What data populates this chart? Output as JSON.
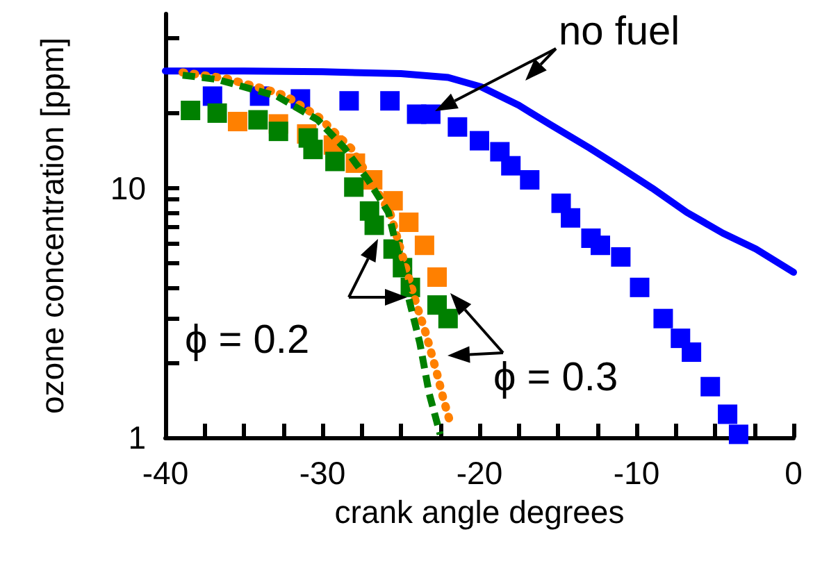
{
  "chart_data": {
    "type": "scatter",
    "xlabel": "crank angle degrees",
    "ylabel": "ozone concentration [ppm]",
    "log": "y",
    "grid": false,
    "xlim": [
      -40,
      0
    ],
    "ylim": [
      1,
      50
    ],
    "xticks": [
      -40,
      {
        "value": -37.5,
        "label": null
      },
      {
        "value": -35,
        "label": null
      },
      {
        "value": -32.5,
        "label": null
      },
      -30,
      {
        "value": -27.5,
        "label": null
      },
      {
        "value": -25,
        "label": null
      },
      {
        "value": -22.5,
        "label": null
      },
      -20,
      {
        "value": -17.5,
        "label": null
      },
      {
        "value": -15,
        "label": null
      },
      {
        "value": -12.5,
        "label": null
      },
      -10,
      {
        "value": -7.5,
        "label": null
      },
      {
        "value": -5,
        "label": null
      },
      {
        "value": -2.5,
        "label": null
      },
      0
    ],
    "yticks": [
      1,
      {
        "value": 2,
        "label": null
      },
      {
        "value": 3,
        "label": null
      },
      {
        "value": 4,
        "label": null
      },
      {
        "value": 5,
        "label": null
      },
      {
        "value": 6,
        "label": null
      },
      {
        "value": 7,
        "label": null
      },
      {
        "value": 8,
        "label": null
      },
      {
        "value": 9,
        "label": null
      },
      10,
      {
        "value": 20,
        "label": null
      },
      {
        "value": 30,
        "label": null
      },
      {
        "value": 40,
        "label": null
      }
    ],
    "series": [
      {
        "type": "line",
        "line_style": "solid",
        "marker": "none",
        "color": "#0000ff",
        "x": [
          -40,
          -35,
          -30,
          -25,
          -22,
          -19.9,
          -17.5,
          -15.5,
          -13,
          -11.2,
          -9,
          -6.8,
          -4.5,
          -2.4,
          0
        ],
        "values": [
          29.5,
          29.5,
          29.3,
          28.8,
          27.8,
          25.5,
          21.5,
          18,
          14.5,
          12.3,
          10,
          8,
          6.6,
          5.7,
          4.6
        ]
      },
      {
        "marker": "square",
        "color": "#0000ff",
        "x": [
          -37,
          -34,
          -31.4,
          -28.3,
          -25.7,
          -24,
          -23.1,
          -21.4,
          -20,
          -18.7,
          -18,
          -16.8,
          -14.8,
          -14.2,
          -12.9,
          -12.3,
          -11,
          -9.8,
          -8.3,
          -7.2,
          -6.5,
          -5.3,
          -4.2,
          -3.5
        ],
        "values": [
          23.4,
          23.4,
          22.8,
          22.4,
          22.4,
          19.8,
          19.8,
          17.6,
          15.5,
          14,
          12.3,
          10.8,
          8.7,
          7.6,
          6.3,
          5.9,
          5.3,
          4,
          3,
          2.5,
          2.2,
          1.6,
          1.24,
          1.03
        ]
      },
      {
        "type": "line",
        "line_style": "dotted",
        "marker": "none",
        "color": "#ff8000",
        "x": [
          -38.9,
          -36.2,
          -33.6,
          -32.3,
          -30.2,
          -28.1,
          -26.8,
          -25.7,
          -24,
          -23.4,
          -22.7,
          -22.3,
          -21.9
        ],
        "values": [
          29.1,
          27.6,
          24.9,
          23.4,
          19.2,
          14.3,
          10.4,
          8,
          3.4,
          2.6,
          1.8,
          1.43,
          1.17
        ]
      },
      {
        "type": "line",
        "line_style": "dashed",
        "marker": "none",
        "color": "#008000",
        "x": [
          -38.9,
          -36.7,
          -32.9,
          -30.3,
          -28.6,
          -27.1,
          -25.8,
          -24.4,
          -23.8,
          -23.2,
          -22.5
        ],
        "values": [
          28.4,
          27.3,
          23.4,
          18.8,
          14.5,
          10.8,
          8,
          3.4,
          2.4,
          1.5,
          1.03
        ]
      },
      {
        "marker": "square",
        "color": "#ff8000",
        "x": [
          -35.4,
          -32.8,
          -31,
          -29.3,
          -27.9,
          -26.8,
          -25.5,
          -24.5,
          -23.5,
          -22.7
        ],
        "values": [
          18.5,
          18.1,
          16.5,
          14.9,
          12.6,
          10.8,
          8.9,
          7.3,
          5.9,
          4.4
        ]
      },
      {
        "marker": "square",
        "color": "#008000",
        "x": [
          -38.4,
          -36.7,
          -34.1,
          -32.8,
          -30.9,
          -30.6,
          -29.2,
          -28,
          -27,
          -26.7,
          -25.5,
          -24.9,
          -24.4,
          -22.7,
          -22
        ],
        "values": [
          20.5,
          20,
          18.8,
          16.9,
          15.9,
          14.3,
          12.8,
          10.1,
          8.1,
          7.1,
          5.7,
          4.8,
          4,
          3.4,
          3
        ]
      }
    ],
    "annotations": [
      "no fuel",
      "ϕ = 0.2",
      "ϕ = 0.3"
    ]
  }
}
